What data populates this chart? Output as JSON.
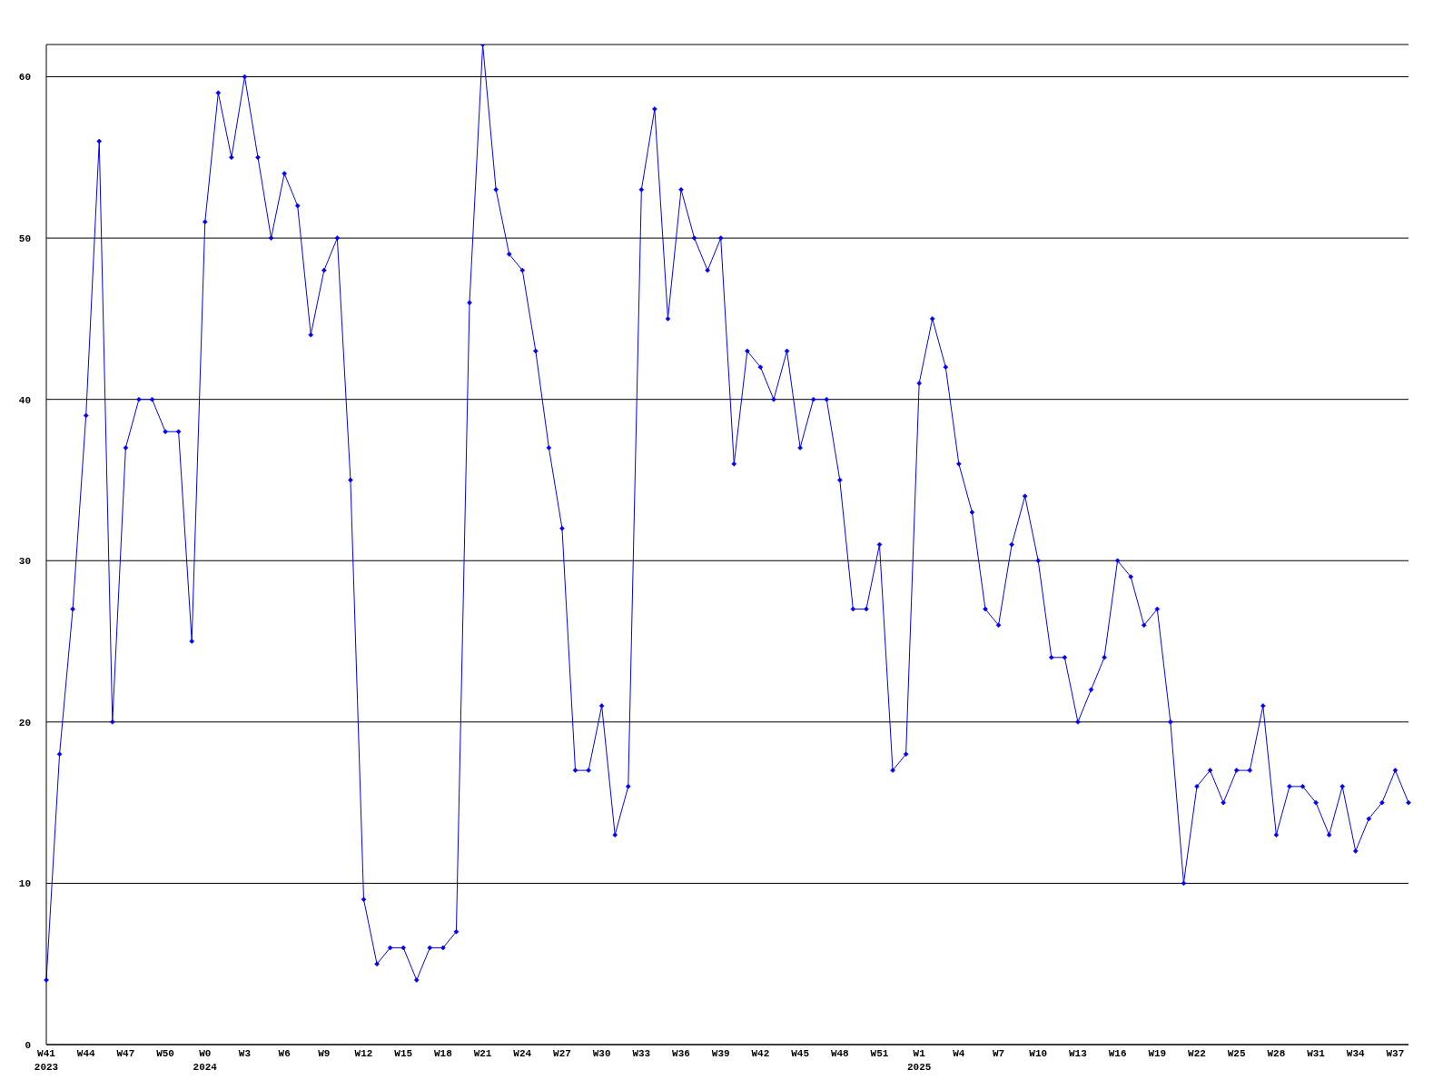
{
  "chart_data": {
    "type": "line",
    "categories": [
      "W41\n2023",
      null,
      null,
      "W44",
      null,
      null,
      "W47",
      null,
      null,
      "W50",
      null,
      null,
      "W0\n2024",
      null,
      null,
      "W3",
      null,
      null,
      "W6",
      null,
      null,
      "W9",
      null,
      null,
      "W12",
      null,
      null,
      "W15",
      null,
      null,
      "W18",
      null,
      null,
      "W21",
      null,
      null,
      "W24",
      null,
      null,
      "W27",
      null,
      null,
      "W30",
      null,
      null,
      "W33",
      null,
      null,
      "W36",
      null,
      null,
      "W39",
      null,
      null,
      "W42",
      null,
      null,
      "W45",
      null,
      null,
      "W48",
      null,
      null,
      "W51",
      null,
      null,
      "W1\n2025",
      null,
      null,
      "W4",
      null,
      null,
      "W7",
      null,
      null,
      "W10",
      null,
      null,
      "W13",
      null,
      null,
      "W16",
      null,
      null,
      "W19",
      null,
      null,
      "W22",
      null,
      null,
      "W25",
      null,
      null,
      "W28",
      null,
      null,
      "W31",
      null,
      null,
      "W34",
      null,
      null,
      "W37",
      null
    ],
    "series": [
      {
        "color": "#0000ff",
        "values": [
          4,
          18,
          27,
          39,
          56,
          20,
          37,
          40,
          40,
          38,
          38,
          25,
          51,
          59,
          55,
          60,
          55,
          50,
          54,
          52,
          44,
          48,
          50,
          35,
          9,
          5,
          6,
          6,
          4,
          6,
          6,
          7,
          46,
          62,
          53,
          49,
          48,
          43,
          37,
          32,
          17,
          17,
          21,
          13,
          16,
          53,
          58,
          45,
          53,
          50,
          48,
          50,
          36,
          43,
          42,
          40,
          43,
          37,
          40,
          40,
          35,
          27,
          27,
          31,
          17,
          18,
          41,
          45,
          42,
          36,
          33,
          27,
          26,
          31,
          34,
          30,
          24,
          24,
          20,
          22,
          24,
          30,
          29,
          26,
          27,
          20,
          10,
          16,
          17,
          15,
          17,
          17,
          21,
          13,
          16,
          16,
          15,
          13,
          16,
          12,
          14,
          15,
          17,
          15
        ]
      }
    ],
    "ylim": [
      0,
      62
    ],
    "yticks": [
      0,
      10,
      20,
      30,
      40,
      50,
      60
    ],
    "grid": "y",
    "marker": "diamond",
    "line_style": "solid"
  }
}
